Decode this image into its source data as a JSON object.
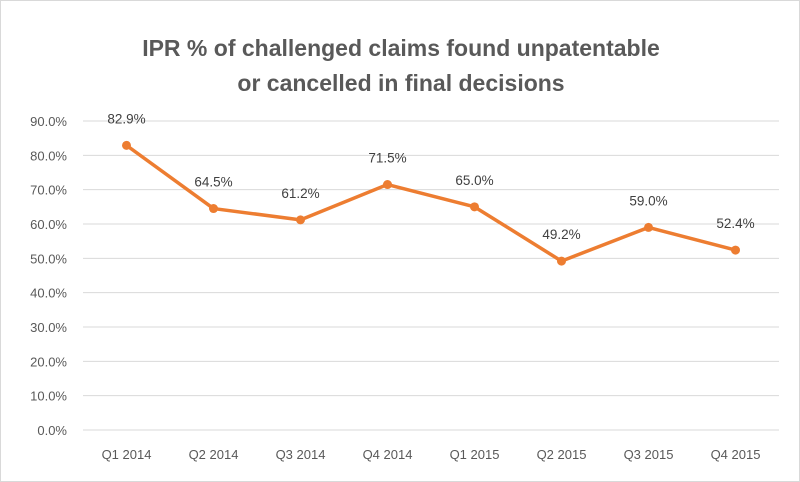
{
  "chart_data": {
    "type": "line",
    "title_lines": [
      "IPR % of challenged claims found unpatentable",
      "or cancelled in final decisions"
    ],
    "categories": [
      "Q1 2014",
      "Q2 2014",
      "Q3 2014",
      "Q4 2014",
      "Q1 2015",
      "Q2 2015",
      "Q3 2015",
      "Q4 2015"
    ],
    "values": [
      82.9,
      64.5,
      61.2,
      71.5,
      65.0,
      49.2,
      59.0,
      52.4
    ],
    "data_labels": [
      "82.9%",
      "64.5%",
      "61.2%",
      "71.5%",
      "65.0%",
      "49.2%",
      "59.0%",
      "52.4%"
    ],
    "y_ticks": [
      "0.0%",
      "10.0%",
      "20.0%",
      "30.0%",
      "40.0%",
      "50.0%",
      "60.0%",
      "70.0%",
      "80.0%",
      "90.0%"
    ],
    "ylim": [
      0,
      90
    ],
    "grid": true,
    "legend": "none",
    "colors": {
      "series": "#ED7D31",
      "grid": "#d9d9d9",
      "text": "#595959"
    }
  }
}
